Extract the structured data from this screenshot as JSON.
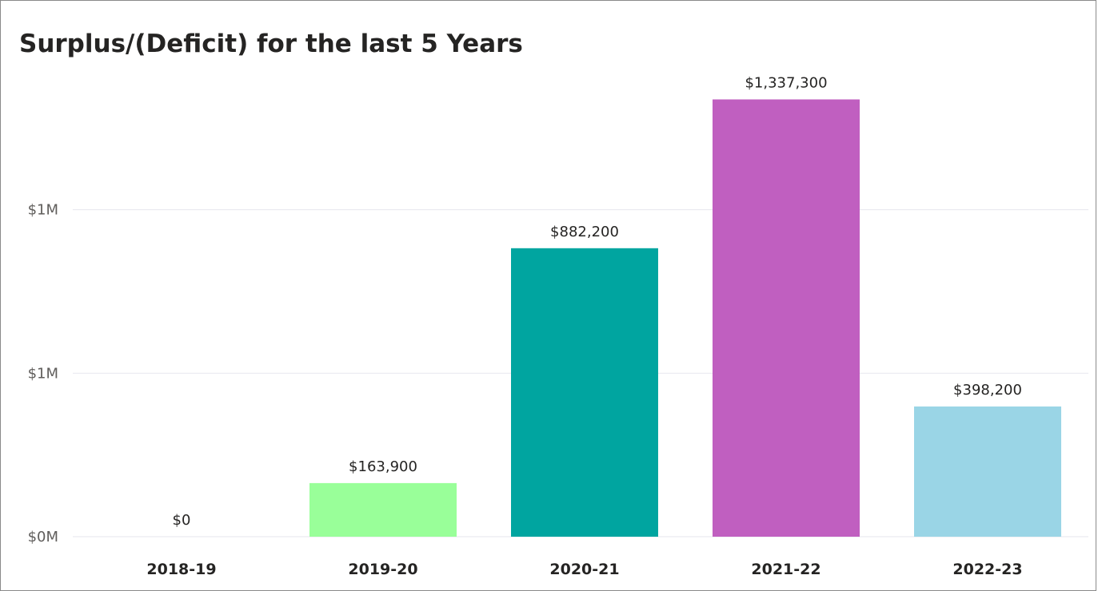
{
  "chart_data": {
    "type": "bar",
    "title": "Surplus/(Deficit) for the last 5 Years",
    "xlabel": "",
    "ylabel": "",
    "categories": [
      "2018-19",
      "2019-20",
      "2020-21",
      "2021-22",
      "2022-23"
    ],
    "values": [
      0,
      163900,
      882200,
      1337300,
      398200
    ],
    "data_labels": [
      "$0",
      "$163,900",
      "$882,200",
      "$1,337,300",
      "$398,200"
    ],
    "colors": [
      "#01b8aa",
      "#99ff99",
      "#00a5a0",
      "#c05fc0",
      "#9ad5e6"
    ],
    "yticks": [
      {
        "value": 0,
        "label": "$0M"
      },
      {
        "value": 500000,
        "label": "$1M"
      },
      {
        "value": 1000000,
        "label": "$1M"
      }
    ],
    "ylim": [
      0,
      1380000
    ],
    "grid": true,
    "legend": "none"
  }
}
